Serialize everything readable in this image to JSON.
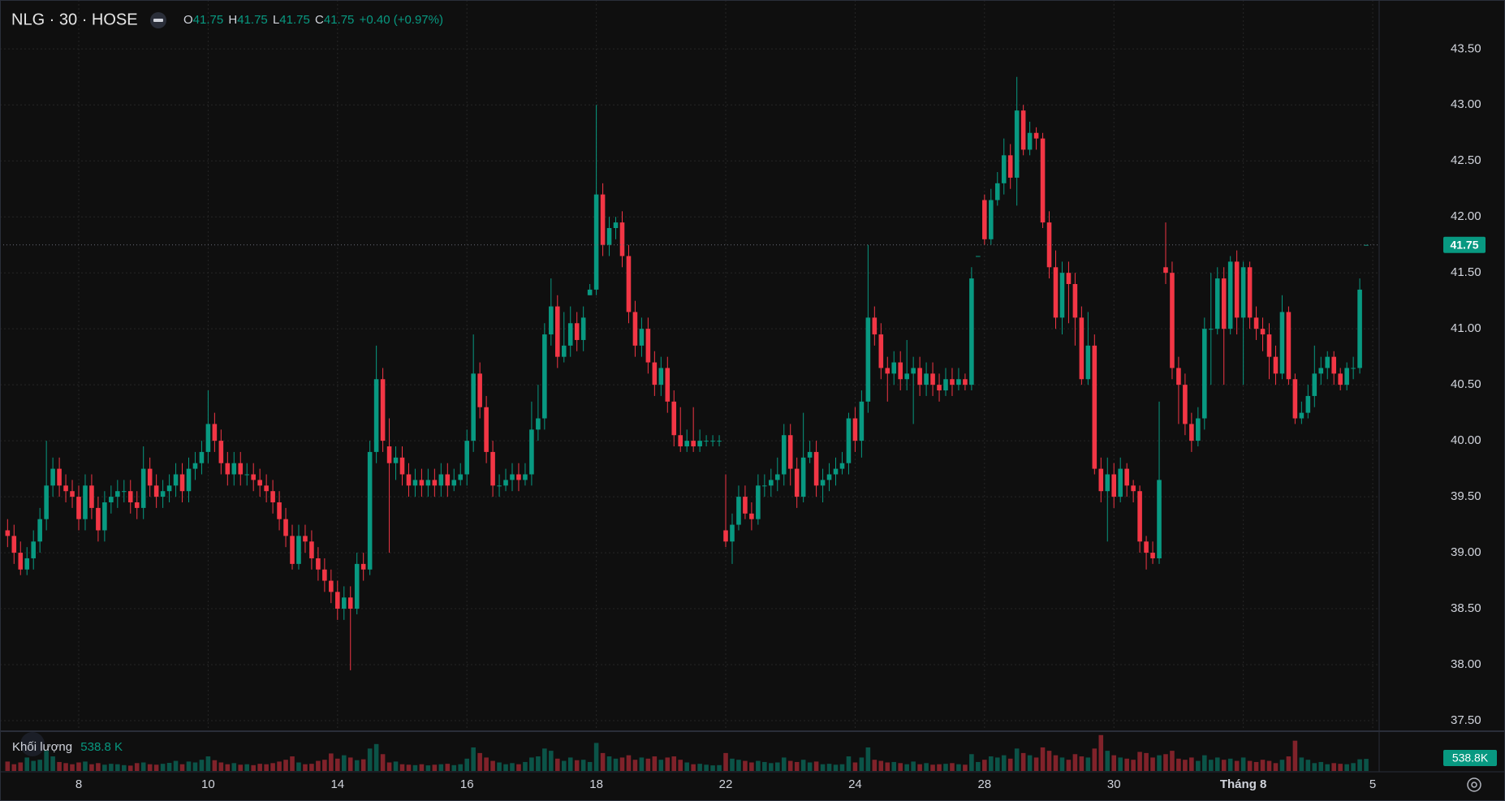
{
  "chart_data": {
    "type": "candlestick",
    "title": "NLG · 30 · HOSE",
    "ohlc_letters": [
      "O",
      "H",
      "L",
      "C"
    ],
    "change": "+0.40 (+0.97%)",
    "volume_title": "Khối lượng",
    "volume_label": "538.8 K",
    "volume_axis_label": "538.8K",
    "up_color": "#089981",
    "down_color": "#f23645",
    "grid": true,
    "xlim": [
      -1.17,
      212
    ],
    "ylim": [
      37.413,
      43.937
    ],
    "volume_lim": [
      0,
      1700
    ],
    "yticks": [
      {
        "value": 37.5,
        "label": "37.50"
      },
      {
        "value": 38,
        "label": "38.00"
      },
      {
        "value": 38.5,
        "label": "38.50"
      },
      {
        "value": 39,
        "label": "39.00"
      },
      {
        "value": 39.5,
        "label": "39.50"
      },
      {
        "value": 40,
        "label": "40.00"
      },
      {
        "value": 40.5,
        "label": "40.50"
      },
      {
        "value": 41,
        "label": "41.00"
      },
      {
        "value": 41.5,
        "label": "41.50"
      },
      {
        "value": 42,
        "label": "42.00"
      },
      {
        "value": 42.5,
        "label": "42.50"
      },
      {
        "value": 43,
        "label": "43.00"
      },
      {
        "value": 43.5,
        "label": "43.50"
      }
    ],
    "xticks": [
      {
        "value": 11,
        "label": "8"
      },
      {
        "value": 31,
        "label": "10"
      },
      {
        "value": 51,
        "label": "14"
      },
      {
        "value": 71,
        "label": "16"
      },
      {
        "value": 91,
        "label": "18"
      },
      {
        "value": 111,
        "label": "22"
      },
      {
        "value": 131,
        "label": "24"
      },
      {
        "value": 151,
        "label": "28"
      },
      {
        "value": 171,
        "label": "30"
      },
      {
        "value": 191,
        "label": "Tháng 8"
      },
      {
        "value": 211,
        "label": "5"
      }
    ],
    "open": [
      39.2,
      39.15,
      39.0,
      38.85,
      38.95,
      39.1,
      39.3,
      39.6,
      39.75,
      39.6,
      39.55,
      39.5,
      39.3,
      39.6,
      39.4,
      39.2,
      39.45,
      39.5,
      39.55,
      39.55,
      39.45,
      39.4,
      39.75,
      39.6,
      39.5,
      39.55,
      39.6,
      39.7,
      39.55,
      39.75,
      39.8,
      39.9,
      40.15,
      40.0,
      39.8,
      39.7,
      39.8,
      39.7,
      39.7,
      39.65,
      39.6,
      39.55,
      39.45,
      39.3,
      39.15,
      38.9,
      39.15,
      39.1,
      38.95,
      38.85,
      38.75,
      38.65,
      38.5,
      38.6,
      38.5,
      38.9,
      38.85,
      39.9,
      40.55,
      39.95,
      39.8,
      39.85,
      39.7,
      39.6,
      39.65,
      39.6,
      39.65,
      39.6,
      39.7,
      39.6,
      39.65,
      39.7,
      40.0,
      40.6,
      40.3,
      39.9,
      39.6,
      39.6,
      39.65,
      39.7,
      39.65,
      39.7,
      40.1,
      40.2,
      40.95,
      41.2,
      40.75,
      40.85,
      41.05,
      40.9,
      41.3,
      41.35,
      42.2,
      41.75,
      41.9,
      41.95,
      41.65,
      41.15,
      40.85,
      41.0,
      40.7,
      40.5,
      40.65,
      40.35,
      40.05,
      39.95,
      40.0,
      39.95,
      40.0,
      40.0,
      40.0,
      39.2,
      39.1,
      39.25,
      39.5,
      39.35,
      39.3,
      39.6,
      39.6,
      39.65,
      39.7,
      40.05,
      39.75,
      39.5,
      39.85,
      39.9,
      39.6,
      39.65,
      39.7,
      39.75,
      39.8,
      40.2,
      40.0,
      40.35,
      41.1,
      40.95,
      40.65,
      40.6,
      40.7,
      40.55,
      40.6,
      40.65,
      40.5,
      40.6,
      40.5,
      40.45,
      40.55,
      40.5,
      40.55,
      40.5,
      41.65,
      42.15,
      41.8,
      42.15,
      42.3,
      42.55,
      42.35,
      42.95,
      42.6,
      42.75,
      42.7,
      41.95,
      41.55,
      41.1,
      41.5,
      41.4,
      41.1,
      40.55,
      40.85,
      39.75,
      39.55,
      39.7,
      39.5,
      39.75,
      39.6,
      39.55,
      39.1,
      39.0,
      38.95,
      41.55,
      41.5,
      40.65,
      40.5,
      40.15,
      40.0,
      40.2,
      41.0,
      41.0,
      41.45,
      41.0,
      41.6,
      41.1,
      41.55,
      41.1,
      41.0,
      40.95,
      40.75,
      40.6,
      41.15,
      40.55,
      40.2,
      40.25,
      40.4,
      40.6,
      40.65,
      40.75,
      40.6,
      40.5,
      40.65,
      40.65,
      41.75
    ],
    "high": [
      39.3,
      39.25,
      39.1,
      39.05,
      39.2,
      39.4,
      40.0,
      39.85,
      39.85,
      39.7,
      39.65,
      39.6,
      39.7,
      39.7,
      39.5,
      39.55,
      39.6,
      39.65,
      39.65,
      39.65,
      39.55,
      39.95,
      39.85,
      39.7,
      39.65,
      39.7,
      39.8,
      39.8,
      39.85,
      39.9,
      40.0,
      40.45,
      40.25,
      40.1,
      39.9,
      39.9,
      39.9,
      39.8,
      39.8,
      39.75,
      39.7,
      39.65,
      39.55,
      39.4,
      39.25,
      39.25,
      39.25,
      39.2,
      39.05,
      38.95,
      38.85,
      38.75,
      38.7,
      38.7,
      39.0,
      39.0,
      40.0,
      40.85,
      40.65,
      40.2,
      39.95,
      39.95,
      39.8,
      39.75,
      39.75,
      39.75,
      39.75,
      39.8,
      39.8,
      39.75,
      39.8,
      40.1,
      40.95,
      40.7,
      40.4,
      40.0,
      39.7,
      39.75,
      39.8,
      39.8,
      39.8,
      40.35,
      40.5,
      41.05,
      41.45,
      41.3,
      41.15,
      41.2,
      41.15,
      41.2,
      41.4,
      43.0,
      42.3,
      42.0,
      42.0,
      42.05,
      41.75,
      41.25,
      41.1,
      41.1,
      40.8,
      40.75,
      40.75,
      40.45,
      40.3,
      40.1,
      40.3,
      40.1,
      40.05,
      40.05,
      40.05,
      39.7,
      39.35,
      39.6,
      39.6,
      39.45,
      39.7,
      39.7,
      39.75,
      39.85,
      40.15,
      40.15,
      39.85,
      40.25,
      40.0,
      40.0,
      39.75,
      39.8,
      39.85,
      39.9,
      40.25,
      40.3,
      40.45,
      41.75,
      41.2,
      41.05,
      40.75,
      40.8,
      40.8,
      40.9,
      40.75,
      40.75,
      40.7,
      40.7,
      40.6,
      40.65,
      40.65,
      40.65,
      40.6,
      41.55,
      41.65,
      42.2,
      42.25,
      42.4,
      42.7,
      42.65,
      43.25,
      43.0,
      42.85,
      42.8,
      42.75,
      42.05,
      41.7,
      41.6,
      41.6,
      41.5,
      41.2,
      41.15,
      40.95,
      39.85,
      39.85,
      39.8,
      39.85,
      39.8,
      39.65,
      39.6,
      39.15,
      39.1,
      40.35,
      41.95,
      41.6,
      40.75,
      40.6,
      40.25,
      40.3,
      41.1,
      41.5,
      41.55,
      41.55,
      41.65,
      41.7,
      41.6,
      41.6,
      41.2,
      41.1,
      41.05,
      40.85,
      41.3,
      41.2,
      40.6,
      40.35,
      40.5,
      40.85,
      40.75,
      40.8,
      40.8,
      40.65,
      40.7,
      40.75,
      41.45,
      41.75
    ],
    "low": [
      39.05,
      38.9,
      38.8,
      38.8,
      38.85,
      39.0,
      39.2,
      39.5,
      39.5,
      39.45,
      39.4,
      39.2,
      39.2,
      39.3,
      39.1,
      39.1,
      39.35,
      39.4,
      39.45,
      39.35,
      39.3,
      39.3,
      39.5,
      39.4,
      39.4,
      39.45,
      39.5,
      39.45,
      39.45,
      39.65,
      39.7,
      39.8,
      39.9,
      39.7,
      39.6,
      39.6,
      39.6,
      39.6,
      39.55,
      39.5,
      39.45,
      39.35,
      39.2,
      39.05,
      38.85,
      38.85,
      39.0,
      38.85,
      38.75,
      38.65,
      38.55,
      38.4,
      38.4,
      37.95,
      38.45,
      38.75,
      38.8,
      39.8,
      39.9,
      39.0,
      39.65,
      39.6,
      39.5,
      39.5,
      39.5,
      39.5,
      39.5,
      39.5,
      39.5,
      39.55,
      39.6,
      39.6,
      39.9,
      40.2,
      39.8,
      39.5,
      39.5,
      39.55,
      39.55,
      39.55,
      39.6,
      39.6,
      40.0,
      40.1,
      40.85,
      40.65,
      40.7,
      40.75,
      40.8,
      40.8,
      41.3,
      41.3,
      41.65,
      41.65,
      41.8,
      41.55,
      41.05,
      40.75,
      40.75,
      40.6,
      40.4,
      40.4,
      40.25,
      39.95,
      39.9,
      39.9,
      39.9,
      39.9,
      39.95,
      39.95,
      39.95,
      39.05,
      38.9,
      39.2,
      39.3,
      39.2,
      39.25,
      39.5,
      39.5,
      39.55,
      39.6,
      39.6,
      39.4,
      39.45,
      39.8,
      39.5,
      39.45,
      39.55,
      39.6,
      39.7,
      39.7,
      39.9,
      39.85,
      40.25,
      40.85,
      40.55,
      40.35,
      40.5,
      40.45,
      40.45,
      40.15,
      40.4,
      40.4,
      40.4,
      40.35,
      40.4,
      40.4,
      40.45,
      40.45,
      40.45,
      41.65,
      41.75,
      41.75,
      42.1,
      42.2,
      42.25,
      42.1,
      42.55,
      42.55,
      42.6,
      41.9,
      41.45,
      41.0,
      40.95,
      41.05,
      40.85,
      40.5,
      40.5,
      39.7,
      39.45,
      39.1,
      39.4,
      39.45,
      39.5,
      39.45,
      39.0,
      38.85,
      38.9,
      38.9,
      41.4,
      40.55,
      40.15,
      40.05,
      39.9,
      39.95,
      40.1,
      40.5,
      40.95,
      40.5,
      40.95,
      40.95,
      40.5,
      41.0,
      40.9,
      40.8,
      40.55,
      40.5,
      40.55,
      40.5,
      40.15,
      40.15,
      40.2,
      40.3,
      40.5,
      40.55,
      40.5,
      40.45,
      40.45,
      40.55,
      40.6,
      41.75
    ],
    "close": [
      39.15,
      39.0,
      38.85,
      38.95,
      39.1,
      39.3,
      39.6,
      39.75,
      39.6,
      39.55,
      39.5,
      39.3,
      39.6,
      39.4,
      39.2,
      39.45,
      39.5,
      39.55,
      39.55,
      39.45,
      39.4,
      39.75,
      39.6,
      39.5,
      39.55,
      39.6,
      39.7,
      39.55,
      39.75,
      39.8,
      39.9,
      40.15,
      40.0,
      39.8,
      39.7,
      39.8,
      39.7,
      39.7,
      39.65,
      39.6,
      39.55,
      39.45,
      39.3,
      39.15,
      38.9,
      39.15,
      39.1,
      38.95,
      38.85,
      38.75,
      38.65,
      38.5,
      38.6,
      38.5,
      38.9,
      38.85,
      39.9,
      40.55,
      40.0,
      39.8,
      39.85,
      39.7,
      39.6,
      39.65,
      39.6,
      39.65,
      39.6,
      39.7,
      39.6,
      39.65,
      39.7,
      40.0,
      40.6,
      40.3,
      39.9,
      39.6,
      39.6,
      39.65,
      39.7,
      39.65,
      39.7,
      40.1,
      40.2,
      40.95,
      41.2,
      40.75,
      40.85,
      41.05,
      40.9,
      41.1,
      41.35,
      42.2,
      41.75,
      41.9,
      41.95,
      41.65,
      41.15,
      40.85,
      41.0,
      40.7,
      40.5,
      40.65,
      40.35,
      40.05,
      39.95,
      40.0,
      39.95,
      40.0,
      40.0,
      40.0,
      40.0,
      39.1,
      39.25,
      39.5,
      39.35,
      39.3,
      39.6,
      39.6,
      39.65,
      39.7,
      40.05,
      39.75,
      39.5,
      39.85,
      39.9,
      39.6,
      39.65,
      39.7,
      39.75,
      39.8,
      40.2,
      40.0,
      40.35,
      41.1,
      40.95,
      40.65,
      40.6,
      40.7,
      40.55,
      40.6,
      40.65,
      40.5,
      40.6,
      40.5,
      40.45,
      40.55,
      40.5,
      40.55,
      40.5,
      41.45,
      41.65,
      41.8,
      42.15,
      42.3,
      42.55,
      42.35,
      42.95,
      42.6,
      42.75,
      42.7,
      41.95,
      41.55,
      41.1,
      41.5,
      41.4,
      41.1,
      40.55,
      40.85,
      39.75,
      39.55,
      39.7,
      39.5,
      39.75,
      39.6,
      39.55,
      39.1,
      39.0,
      38.95,
      39.65,
      41.5,
      40.65,
      40.5,
      40.15,
      40.0,
      40.2,
      41.0,
      41.0,
      41.45,
      41.0,
      41.6,
      41.1,
      41.55,
      41.1,
      41.0,
      40.95,
      40.75,
      40.6,
      41.15,
      40.55,
      40.2,
      40.25,
      40.4,
      40.6,
      40.65,
      40.75,
      40.6,
      40.5,
      40.65,
      40.65,
      41.35,
      41.75
    ],
    "volume": [
      420,
      300,
      380,
      600,
      450,
      500,
      900,
      650,
      400,
      350,
      300,
      380,
      420,
      300,
      350,
      280,
      320,
      300,
      260,
      240,
      350,
      380,
      300,
      280,
      320,
      360,
      450,
      300,
      420,
      380,
      500,
      650,
      480,
      380,
      300,
      350,
      280,
      300,
      260,
      320,
      300,
      350,
      420,
      500,
      650,
      380,
      300,
      320,
      450,
      500,
      780,
      550,
      700,
      600,
      480,
      520,
      1000,
      1200,
      750,
      380,
      420,
      300,
      280,
      260,
      300,
      250,
      280,
      300,
      320,
      260,
      300,
      550,
      1050,
      800,
      600,
      450,
      380,
      300,
      350,
      300,
      400,
      600,
      650,
      1000,
      900,
      550,
      450,
      600,
      480,
      500,
      400,
      1250,
      800,
      650,
      550,
      600,
      700,
      500,
      600,
      550,
      650,
      500,
      600,
      650,
      500,
      380,
      300,
      320,
      280,
      250,
      260,
      800,
      550,
      500,
      450,
      380,
      450,
      400,
      350,
      380,
      600,
      450,
      400,
      500,
      380,
      420,
      300,
      320,
      280,
      300,
      650,
      380,
      600,
      1050,
      500,
      450,
      380,
      400,
      350,
      300,
      420,
      300,
      350,
      280,
      300,
      320,
      350,
      300,
      280,
      750,
      400,
      500,
      650,
      600,
      700,
      550,
      1000,
      800,
      700,
      600,
      1050,
      900,
      700,
      600,
      500,
      750,
      650,
      600,
      1000,
      1600,
      900,
      700,
      600,
      550,
      500,
      850,
      800,
      600,
      700,
      750,
      900,
      550,
      500,
      600,
      450,
      700,
      500,
      600,
      500,
      550,
      450,
      600,
      450,
      400,
      500,
      450,
      350,
      500,
      650,
      1350,
      600,
      500,
      350,
      400,
      300,
      350,
      320,
      300,
      350,
      520,
      538.8
    ]
  }
}
